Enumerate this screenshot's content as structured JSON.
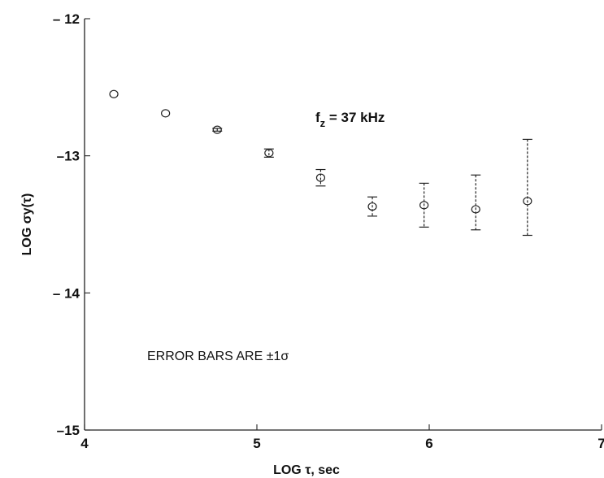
{
  "chart_data": {
    "type": "scatter",
    "title": "",
    "xlabel": "LOG τ, sec",
    "ylabel": "LOG σy(τ)",
    "xlim": [
      4,
      7
    ],
    "ylim": [
      -15,
      -12
    ],
    "x_ticks": [
      4,
      5,
      6,
      7
    ],
    "y_ticks": [
      -12,
      -13,
      -14,
      -15
    ],
    "x_tick_labels": [
      "4",
      "5",
      "6",
      "7"
    ],
    "y_tick_labels": [
      "– 12",
      "–13",
      "– 14",
      "–15"
    ],
    "grid": false,
    "series": [
      {
        "marker": "open-circle",
        "x": [
          4.17,
          4.47,
          4.77,
          5.07,
          5.37,
          5.67,
          5.97,
          6.27,
          6.57
        ],
        "y": [
          -12.55,
          -12.69,
          -12.81,
          -12.98,
          -13.16,
          -13.37,
          -13.36,
          -13.39,
          -13.33
        ],
        "err_low": [
          0,
          0,
          0.01,
          0.03,
          0.06,
          0.07,
          0.16,
          0.15,
          0.25
        ],
        "err_high": [
          0,
          0,
          0.01,
          0.03,
          0.06,
          0.07,
          0.16,
          0.25,
          0.45
        ]
      }
    ],
    "annotations": {
      "frequency": {
        "prefix": "f",
        "subscript": "z",
        "value": " = 37 kHz"
      },
      "error_note": {
        "text": "ERROR BARS ARE ",
        "sigma": "±1σ"
      }
    }
  }
}
